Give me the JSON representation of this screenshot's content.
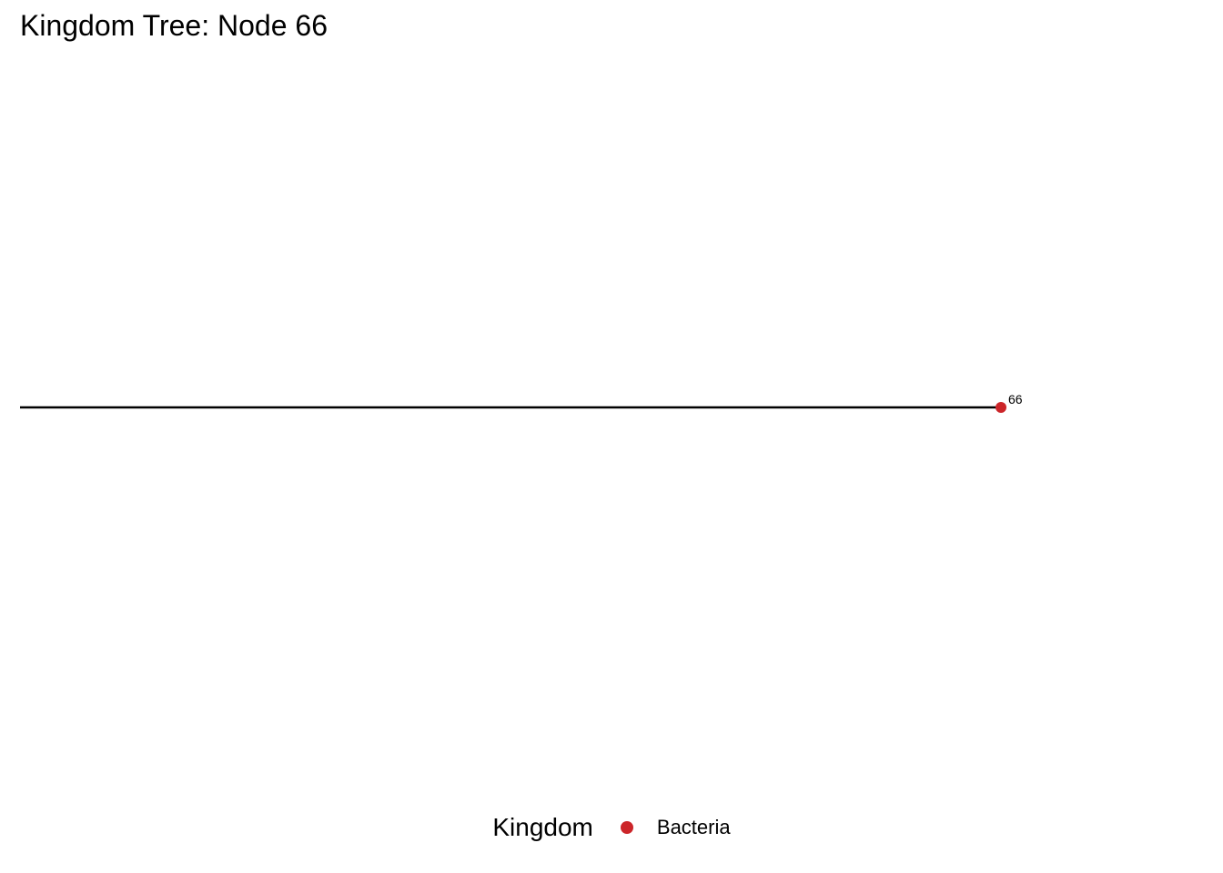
{
  "title": "Kingdom Tree: Node 66",
  "tree": {
    "nodes": [
      {
        "label": "66",
        "kingdom": "Bacteria",
        "color": "#CC2529"
      }
    ],
    "edge_color": "#000000"
  },
  "legend": {
    "title": "Kingdom",
    "items": [
      {
        "label": "Bacteria",
        "color": "#CC2529"
      }
    ]
  }
}
